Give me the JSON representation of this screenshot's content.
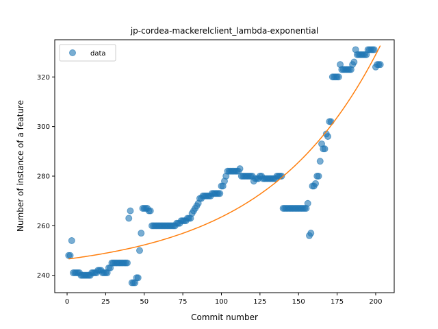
{
  "chart_data": {
    "type": "scatter",
    "title": "jp-cordea-mackerelclient_lambda-exponential",
    "xlabel": "Commit number",
    "ylabel": "Number of instance of a feature",
    "xlim": [
      -8,
      212
    ],
    "ylim": [
      233,
      335
    ],
    "xticks": [
      0,
      25,
      50,
      75,
      100,
      125,
      150,
      175,
      200
    ],
    "yticks": [
      240,
      260,
      280,
      300,
      320
    ],
    "legend": {
      "position": "top-left",
      "entries": [
        "data"
      ]
    },
    "grid": false,
    "colors": {
      "data": "#1f77b4",
      "fit": "#ff7f0e"
    },
    "series": [
      {
        "name": "data",
        "kind": "scatter",
        "x": [
          1,
          2,
          3,
          4,
          5,
          6,
          7,
          8,
          9,
          10,
          11,
          12,
          13,
          14,
          15,
          16,
          17,
          18,
          19,
          20,
          21,
          22,
          23,
          24,
          25,
          26,
          27,
          28,
          29,
          30,
          31,
          32,
          33,
          34,
          35,
          36,
          37,
          38,
          39,
          40,
          41,
          42,
          43,
          44,
          45,
          46,
          47,
          48,
          49,
          50,
          51,
          52,
          53,
          54,
          55,
          56,
          57,
          58,
          59,
          60,
          61,
          62,
          63,
          64,
          65,
          66,
          67,
          68,
          69,
          70,
          71,
          72,
          73,
          74,
          75,
          76,
          77,
          78,
          79,
          80,
          81,
          82,
          83,
          84,
          85,
          86,
          87,
          88,
          89,
          90,
          91,
          92,
          93,
          94,
          95,
          96,
          97,
          98,
          99,
          100,
          101,
          102,
          103,
          104,
          105,
          106,
          107,
          108,
          109,
          110,
          111,
          112,
          113,
          114,
          115,
          116,
          117,
          118,
          119,
          120,
          121,
          122,
          123,
          124,
          125,
          126,
          127,
          128,
          129,
          130,
          131,
          132,
          133,
          134,
          135,
          136,
          137,
          138,
          139,
          140,
          141,
          142,
          143,
          144,
          145,
          146,
          147,
          148,
          149,
          150,
          151,
          152,
          153,
          154,
          155,
          156,
          157,
          158,
          159,
          160,
          161,
          162,
          163,
          164,
          165,
          166,
          167,
          168,
          169,
          170,
          171,
          172,
          173,
          174,
          175,
          176,
          177,
          178,
          179,
          180,
          181,
          182,
          183,
          184,
          185,
          186,
          187,
          188,
          189,
          190,
          191,
          192,
          193,
          194,
          195,
          196,
          197,
          198,
          199,
          200,
          201,
          202,
          203
        ],
        "y": [
          248,
          248,
          254,
          241,
          241,
          241,
          241,
          241,
          240,
          240,
          240,
          240,
          240,
          240,
          240,
          241,
          241,
          241,
          241,
          242,
          242,
          242,
          241,
          241,
          241,
          241,
          243,
          243,
          245,
          245,
          245,
          245,
          245,
          245,
          245,
          245,
          245,
          245,
          245,
          263,
          266,
          237,
          237,
          237,
          239,
          239,
          250,
          257,
          267,
          267,
          267,
          267,
          266,
          266,
          260,
          260,
          260,
          260,
          260,
          260,
          260,
          260,
          260,
          260,
          260,
          260,
          260,
          260,
          260,
          260,
          261,
          261,
          261,
          262,
          262,
          262,
          262,
          263,
          263,
          263,
          265,
          266,
          267,
          268,
          269,
          271,
          271,
          272,
          272,
          272,
          272,
          272,
          272,
          273,
          273,
          273,
          273,
          273,
          273,
          276,
          276,
          278,
          280,
          282,
          282,
          282,
          282,
          282,
          282,
          282,
          282,
          283,
          280,
          280,
          280,
          280,
          280,
          280,
          280,
          280,
          278,
          279,
          279,
          279,
          280,
          280,
          279,
          279,
          279,
          279,
          279,
          279,
          279,
          279,
          279,
          280,
          280,
          280,
          280,
          267,
          267,
          267,
          267,
          267,
          267,
          267,
          267,
          267,
          267,
          267,
          267,
          267,
          267,
          267,
          267,
          269,
          256,
          257,
          276,
          276,
          277,
          280,
          280,
          286,
          293,
          291,
          291,
          297,
          296,
          302,
          302,
          320,
          320,
          320,
          320,
          320,
          325,
          323,
          323,
          323,
          323,
          323,
          323,
          323,
          325,
          326,
          331,
          329,
          329,
          329,
          329,
          329,
          329,
          329,
          331,
          331,
          331,
          331,
          331,
          324,
          325,
          325,
          325
        ],
        "marker": "circle",
        "alpha": 0.6
      },
      {
        "kind": "line",
        "equation": "y = 240.6 + 5.94 * exp(0.0135 * x)",
        "x_range": [
          1,
          203
        ]
      }
    ]
  }
}
